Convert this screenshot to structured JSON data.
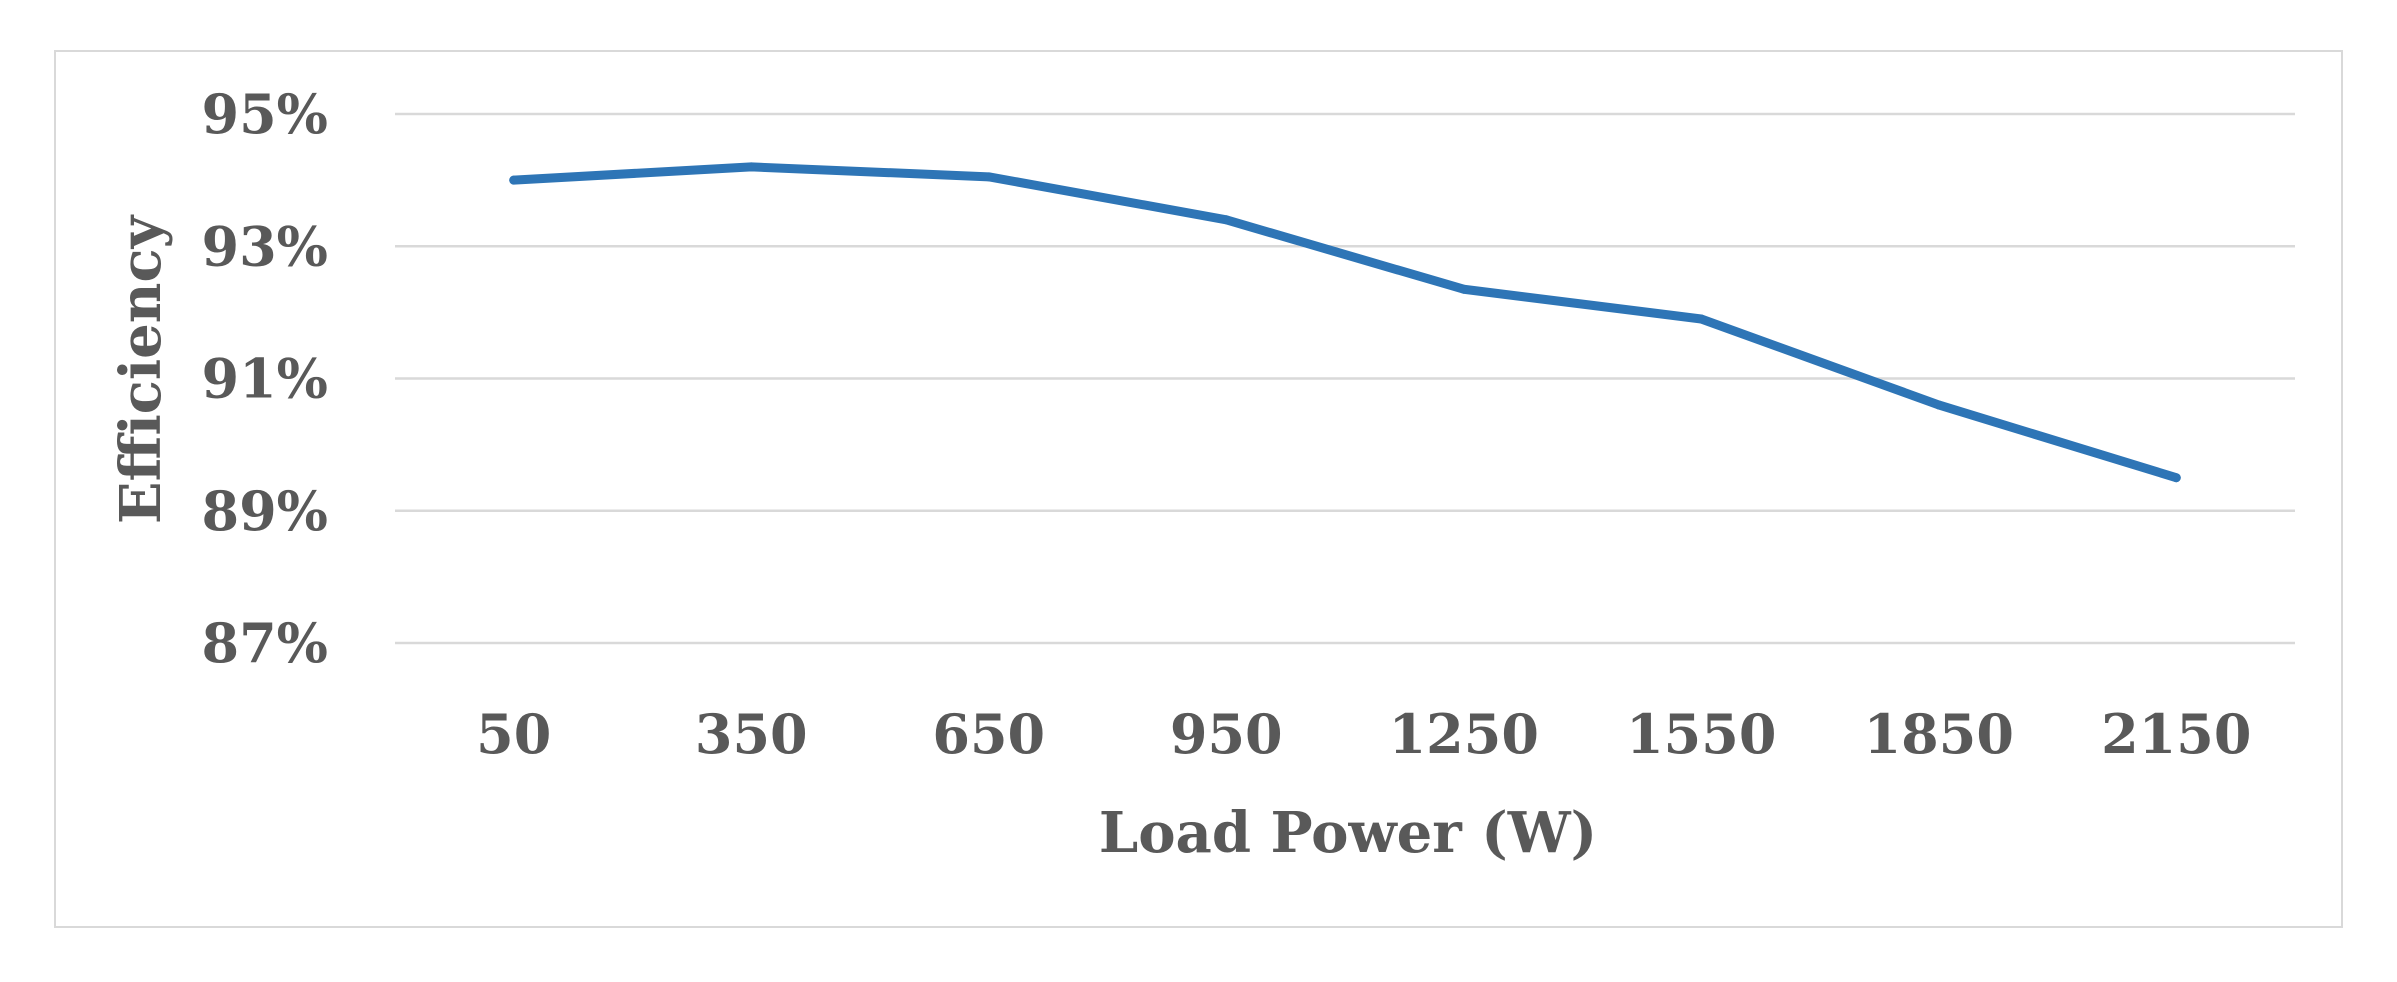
{
  "chart_data": {
    "type": "line",
    "title": "",
    "xlabel": "Load Power  (W)",
    "ylabel": "Efficiency",
    "categories": [
      "50",
      "350",
      "650",
      "950",
      "1250",
      "1550",
      "1850",
      "2150"
    ],
    "y_tick_labels": [
      "87%",
      "89%",
      "91%",
      "93%",
      "95%"
    ],
    "y_ticks": [
      87,
      89,
      91,
      93,
      95
    ],
    "ylim": [
      87,
      95
    ],
    "grid": true,
    "legend": "none",
    "series": [
      {
        "values": [
          94.0,
          94.2,
          94.05,
          93.4,
          92.35,
          91.9,
          90.6,
          89.5
        ],
        "color": "#2e75b6"
      }
    ]
  }
}
